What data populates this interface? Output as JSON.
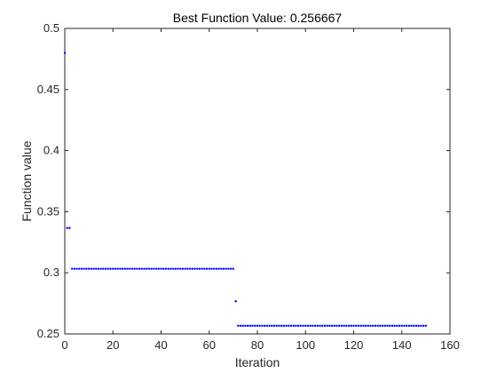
{
  "chart_data": {
    "type": "scatter",
    "title": "Best Function Value: 0.256667",
    "xlabel": "Iteration",
    "ylabel": "Function value",
    "xlim": [
      0,
      160
    ],
    "ylim": [
      0.25,
      0.5
    ],
    "xticks": [
      0,
      20,
      40,
      60,
      80,
      100,
      120,
      140,
      160
    ],
    "yticks": [
      0.25,
      0.3,
      0.35,
      0.4,
      0.45,
      0.5
    ],
    "ytick_labels": [
      "0.25",
      "0.3",
      "0.35",
      "0.4",
      "0.45",
      "0.5"
    ],
    "grid": false,
    "marker_color": "#0000ff",
    "segments": [
      {
        "x_start": 0,
        "x_end": 0,
        "y": 0.48
      },
      {
        "x_start": 1,
        "x_end": 2,
        "y": 0.3367
      },
      {
        "x_start": 3,
        "x_end": 70,
        "y": 0.3033
      },
      {
        "x_start": 71,
        "x_end": 71,
        "y": 0.2767
      },
      {
        "x_start": 72,
        "x_end": 150,
        "y": 0.256667
      }
    ]
  }
}
